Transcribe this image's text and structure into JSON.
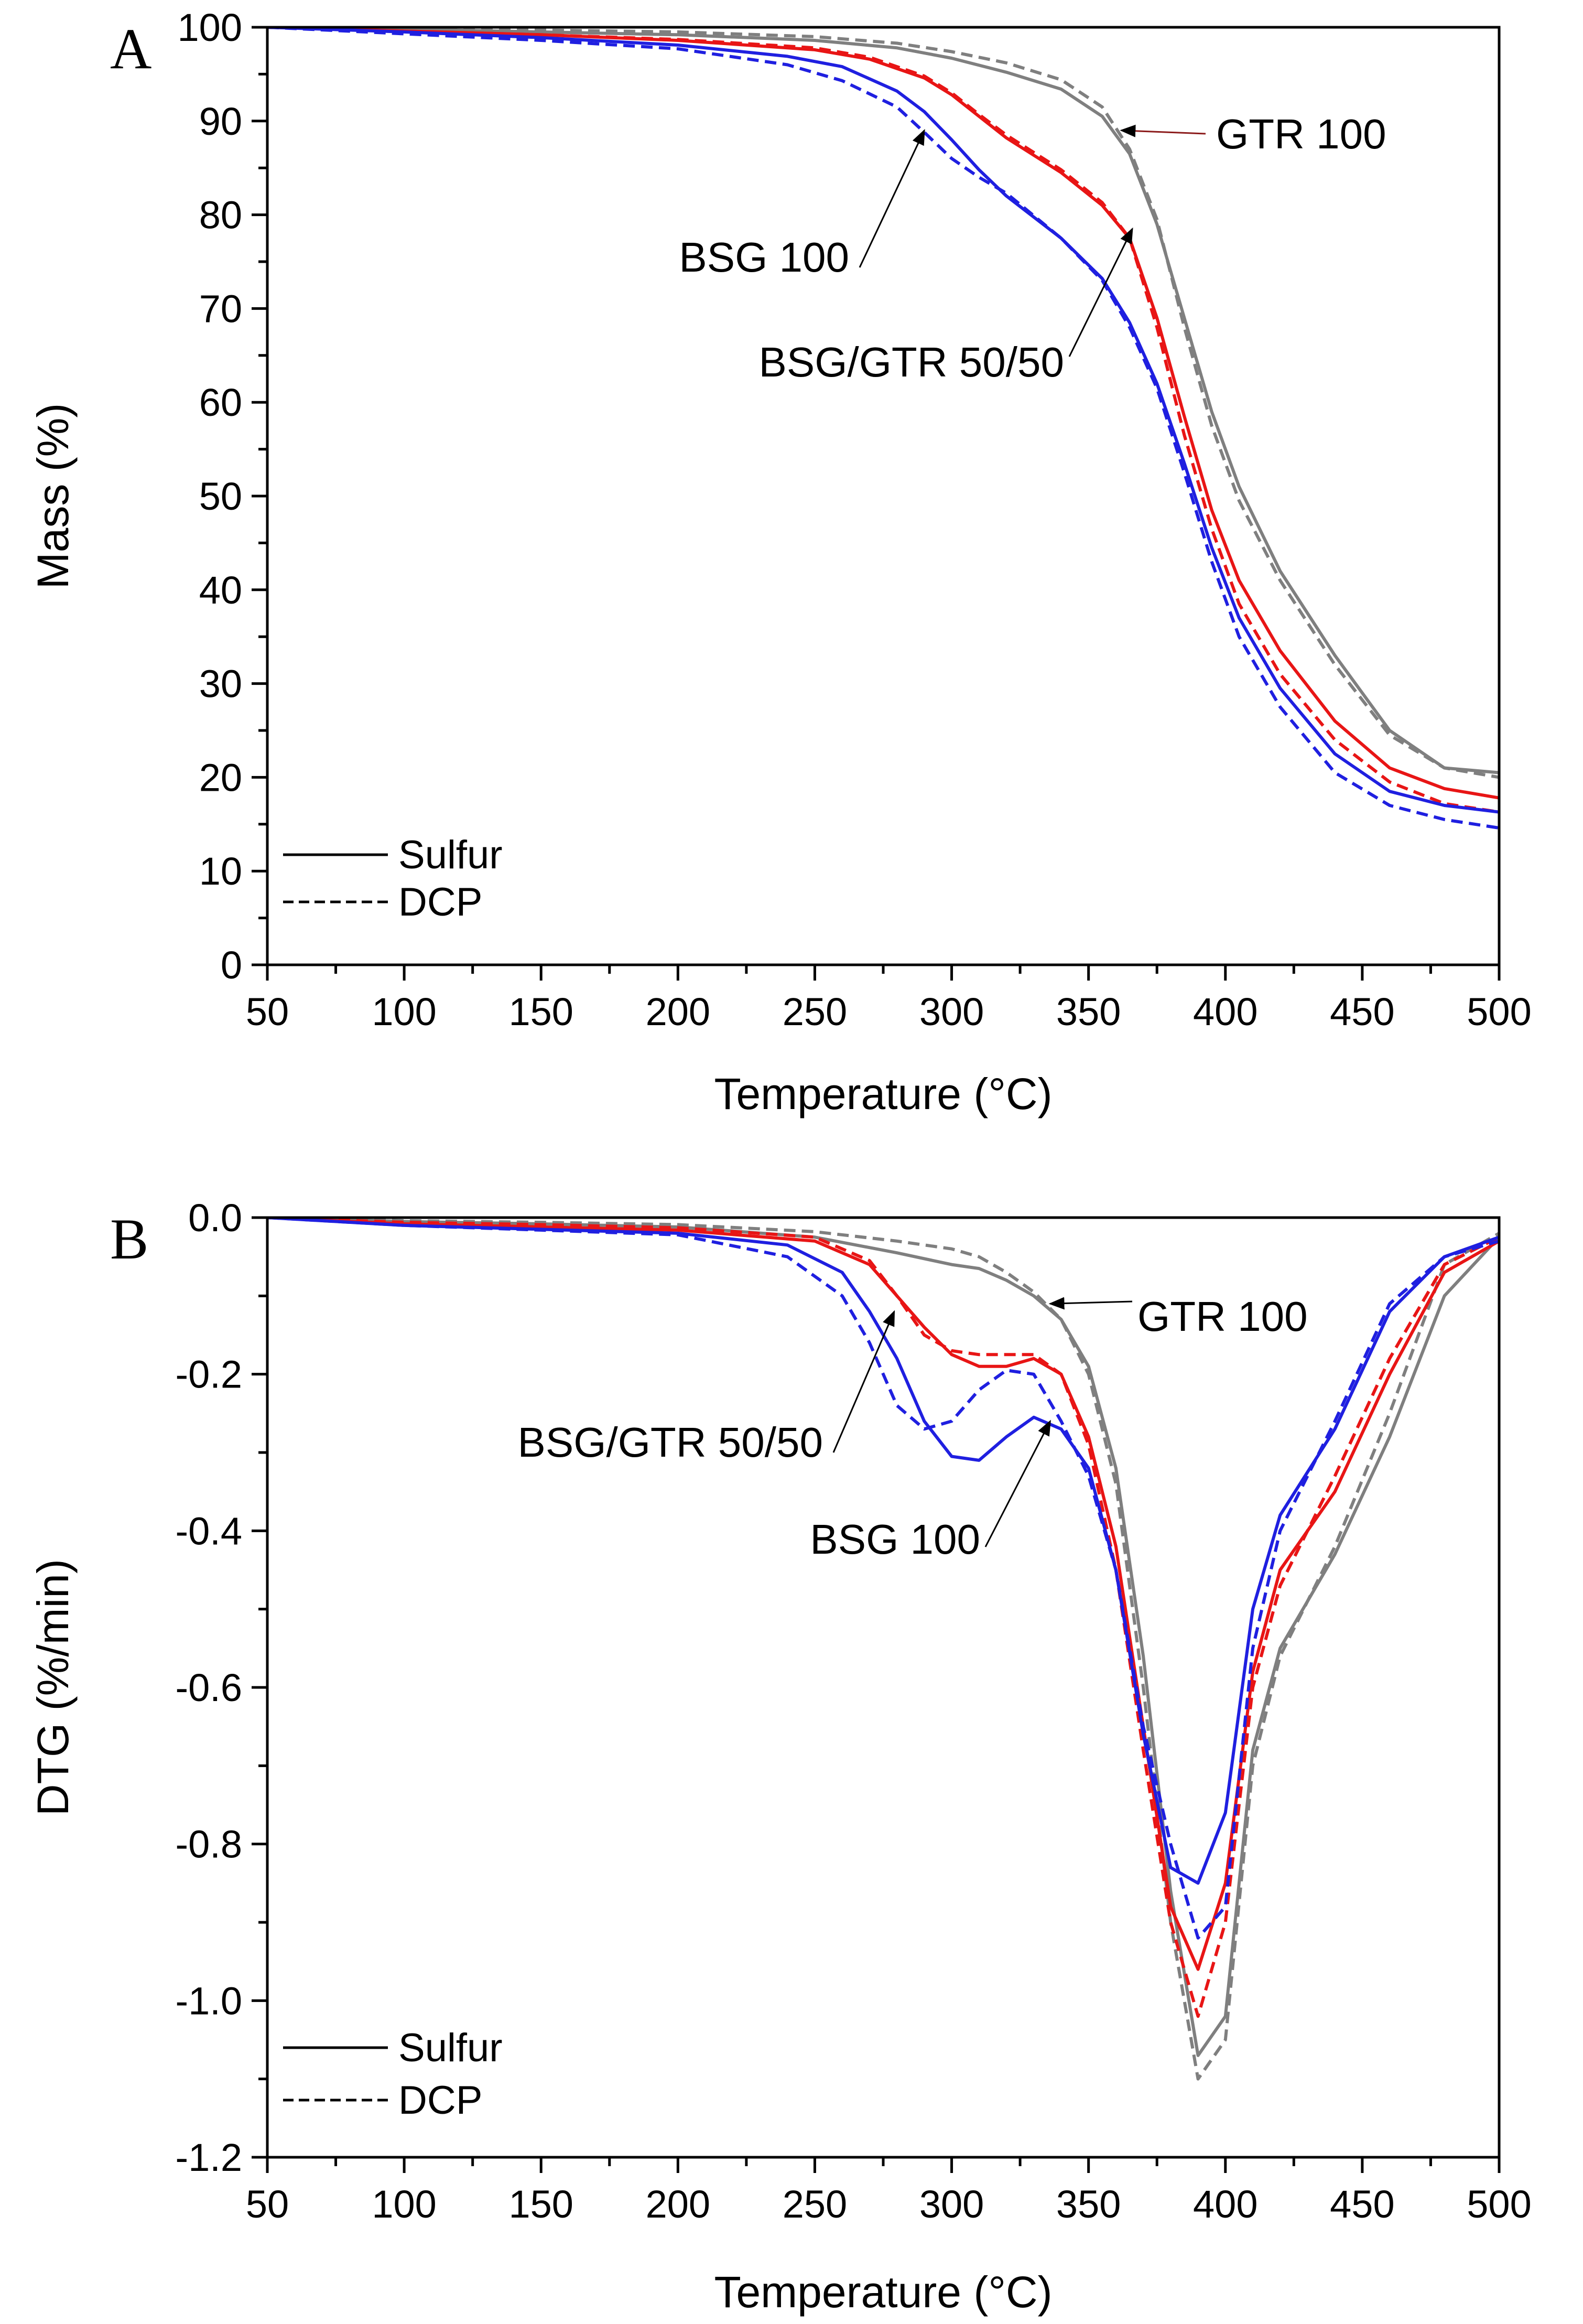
{
  "colors": {
    "bsg": "#1f1fe0",
    "mix": "#e81515",
    "gtr": "#7f7f7f",
    "gtr_arrow_a": "#8b1a1a",
    "axis": "#000000"
  },
  "chart_data": [
    {
      "panel": "A",
      "type": "line",
      "xlabel": "Temperature (°C)",
      "ylabel": "Mass (%)",
      "xlim": [
        50,
        500
      ],
      "ylim": [
        0,
        100
      ],
      "xticks": [
        50,
        100,
        150,
        200,
        250,
        300,
        350,
        400,
        450,
        500
      ],
      "yticks": [
        0,
        10,
        20,
        30,
        40,
        50,
        60,
        70,
        80,
        90,
        100
      ],
      "legend": {
        "position": "bottom-left",
        "entries": [
          {
            "label": "Sulfur",
            "style": "solid"
          },
          {
            "label": "DCP",
            "style": "dashed"
          }
        ]
      },
      "annotations": [
        {
          "text": "GTR 100",
          "points_to": [
            362,
            89
          ]
        },
        {
          "text": "BSG 100",
          "points_to": [
            290,
            89
          ]
        },
        {
          "text": "BSG/GTR 50/50",
          "points_to": [
            366,
            78.5
          ]
        }
      ],
      "series": [
        {
          "name": "GTR 100",
          "curing": "Sulfur",
          "style": "solid",
          "color_key": "gtr",
          "x": [
            50,
            100,
            150,
            200,
            250,
            280,
            300,
            320,
            340,
            355,
            365,
            375,
            385,
            395,
            405,
            420,
            440,
            460,
            480,
            500
          ],
          "y": [
            100,
            99.8,
            99.5,
            99.2,
            98.6,
            97.8,
            96.7,
            95.2,
            93.4,
            90.5,
            86.5,
            79,
            69,
            59,
            51,
            42,
            33,
            25,
            21,
            20.5
          ]
        },
        {
          "name": "GTR 100",
          "curing": "DCP",
          "style": "dashed",
          "color_key": "gtr",
          "x": [
            50,
            100,
            150,
            200,
            250,
            280,
            300,
            320,
            340,
            355,
            365,
            375,
            385,
            395,
            405,
            420,
            440,
            460,
            480,
            500
          ],
          "y": [
            100,
            99.9,
            99.7,
            99.5,
            99,
            98.3,
            97.4,
            96.2,
            94.4,
            91.5,
            87,
            79.5,
            68,
            57.5,
            49.5,
            41,
            32,
            24.5,
            21,
            20
          ]
        },
        {
          "name": "BSG/GTR 50/50",
          "curing": "Sulfur",
          "style": "solid",
          "color_key": "mix",
          "x": [
            50,
            100,
            150,
            200,
            250,
            270,
            290,
            300,
            310,
            320,
            340,
            355,
            365,
            375,
            385,
            395,
            405,
            420,
            440,
            460,
            480,
            500
          ],
          "y": [
            100,
            99.6,
            99.2,
            98.6,
            97.6,
            96.6,
            94.6,
            92.8,
            90.5,
            88.2,
            84.5,
            81,
            77.5,
            69,
            58.5,
            48.5,
            41,
            33.5,
            26,
            21,
            18.8,
            17.8
          ]
        },
        {
          "name": "BSG/GTR 50/50",
          "curing": "DCP",
          "style": "dashed",
          "color_key": "mix",
          "x": [
            50,
            100,
            150,
            200,
            250,
            270,
            290,
            300,
            310,
            320,
            340,
            355,
            365,
            375,
            385,
            395,
            405,
            420,
            440,
            460,
            480,
            500
          ],
          "y": [
            100,
            99.6,
            99.2,
            98.7,
            97.8,
            96.8,
            94.8,
            93,
            90.7,
            88.5,
            84.8,
            81.3,
            77.5,
            68,
            56.5,
            46.5,
            38.5,
            31,
            24,
            19.5,
            17.2,
            16.3
          ]
        },
        {
          "name": "BSG 100",
          "curing": "Sulfur",
          "style": "solid",
          "color_key": "bsg",
          "x": [
            50,
            100,
            150,
            200,
            240,
            260,
            280,
            290,
            300,
            310,
            320,
            340,
            355,
            365,
            375,
            385,
            395,
            405,
            420,
            440,
            460,
            480,
            500
          ],
          "y": [
            100,
            99.5,
            98.9,
            98.1,
            96.9,
            95.8,
            93.2,
            91,
            88,
            84.8,
            82,
            77.5,
            73.2,
            68.5,
            62,
            53.5,
            44.5,
            37,
            29.5,
            22.5,
            18.5,
            17,
            16.3
          ]
        },
        {
          "name": "BSG 100",
          "curing": "DCP",
          "style": "dashed",
          "color_key": "bsg",
          "x": [
            50,
            100,
            150,
            200,
            240,
            260,
            280,
            290,
            300,
            310,
            320,
            340,
            355,
            365,
            375,
            385,
            395,
            405,
            420,
            440,
            460,
            480,
            500
          ],
          "y": [
            100,
            99.3,
            98.6,
            97.7,
            96,
            94.3,
            91.5,
            88.8,
            86,
            84,
            82.3,
            77.5,
            73,
            68,
            61.5,
            52.5,
            43,
            35,
            27.5,
            20.5,
            17,
            15.5,
            14.6
          ]
        }
      ]
    },
    {
      "panel": "B",
      "type": "line",
      "xlabel": "Temperature (°C)",
      "ylabel": "DTG (%/min)",
      "xlim": [
        50,
        500
      ],
      "ylim": [
        -1.2,
        0.0
      ],
      "xticks": [
        50,
        100,
        150,
        200,
        250,
        300,
        350,
        400,
        450,
        500
      ],
      "yticks": [
        "0.0",
        "-0.2",
        "-0.4",
        "-0.6",
        "-0.8",
        "-1.0",
        "-1.2"
      ],
      "legend": {
        "position": "bottom-left",
        "entries": [
          {
            "label": "Sulfur",
            "style": "solid"
          },
          {
            "label": "DCP",
            "style": "dashed"
          }
        ]
      },
      "annotations": [
        {
          "text": "GTR 100",
          "points_to": [
            336,
            -0.11
          ]
        },
        {
          "text": "BSG/GTR 50/50",
          "points_to": [
            279,
            -0.12
          ]
        },
        {
          "text": "BSG 100",
          "points_to": [
            336,
            -0.26
          ]
        }
      ],
      "series": [
        {
          "name": "GTR 100",
          "curing": "Sulfur",
          "style": "solid",
          "color_key": "gtr",
          "x": [
            50,
            100,
            150,
            200,
            250,
            280,
            300,
            310,
            320,
            330,
            340,
            350,
            360,
            370,
            380,
            390,
            400,
            410,
            420,
            440,
            460,
            480,
            500
          ],
          "y": [
            0,
            -0.005,
            -0.008,
            -0.012,
            -0.025,
            -0.045,
            -0.06,
            -0.065,
            -0.08,
            -0.1,
            -0.13,
            -0.19,
            -0.32,
            -0.56,
            -0.86,
            -1.07,
            -1.02,
            -0.68,
            -0.55,
            -0.43,
            -0.28,
            -0.1,
            -0.025
          ]
        },
        {
          "name": "GTR 100",
          "curing": "DCP",
          "style": "dashed",
          "color_key": "gtr",
          "x": [
            50,
            100,
            150,
            200,
            250,
            280,
            300,
            310,
            320,
            330,
            340,
            350,
            360,
            370,
            380,
            390,
            400,
            410,
            420,
            440,
            460,
            480,
            500
          ],
          "y": [
            0,
            -0.004,
            -0.006,
            -0.009,
            -0.018,
            -0.03,
            -0.04,
            -0.05,
            -0.07,
            -0.095,
            -0.13,
            -0.2,
            -0.34,
            -0.6,
            -0.9,
            -1.1,
            -1.05,
            -0.7,
            -0.56,
            -0.42,
            -0.25,
            -0.06,
            -0.02
          ]
        },
        {
          "name": "BSG/GTR 50/50",
          "curing": "Sulfur",
          "style": "solid",
          "color_key": "mix",
          "x": [
            50,
            100,
            150,
            200,
            250,
            270,
            280,
            290,
            300,
            310,
            320,
            330,
            340,
            350,
            360,
            370,
            380,
            390,
            400,
            410,
            420,
            440,
            460,
            480,
            500
          ],
          "y": [
            0,
            -0.008,
            -0.012,
            -0.016,
            -0.03,
            -0.06,
            -0.1,
            -0.14,
            -0.175,
            -0.19,
            -0.19,
            -0.18,
            -0.2,
            -0.28,
            -0.42,
            -0.65,
            -0.88,
            -0.96,
            -0.85,
            -0.58,
            -0.45,
            -0.35,
            -0.2,
            -0.07,
            -0.03
          ]
        },
        {
          "name": "BSG/GTR 50/50",
          "curing": "DCP",
          "style": "dashed",
          "color_key": "mix",
          "x": [
            50,
            100,
            150,
            200,
            250,
            270,
            280,
            290,
            300,
            310,
            320,
            330,
            340,
            350,
            360,
            370,
            380,
            390,
            400,
            410,
            420,
            440,
            460,
            480,
            500
          ],
          "y": [
            0,
            -0.006,
            -0.009,
            -0.013,
            -0.025,
            -0.055,
            -0.1,
            -0.15,
            -0.17,
            -0.175,
            -0.175,
            -0.175,
            -0.2,
            -0.29,
            -0.45,
            -0.68,
            -0.9,
            -1.02,
            -0.9,
            -0.6,
            -0.47,
            -0.33,
            -0.18,
            -0.06,
            -0.025
          ]
        },
        {
          "name": "BSG 100",
          "curing": "Sulfur",
          "style": "solid",
          "color_key": "bsg",
          "x": [
            50,
            100,
            150,
            200,
            240,
            260,
            270,
            280,
            290,
            300,
            310,
            320,
            330,
            340,
            350,
            360,
            370,
            380,
            390,
            400,
            410,
            420,
            440,
            460,
            480,
            500
          ],
          "y": [
            0,
            -0.01,
            -0.015,
            -0.02,
            -0.035,
            -0.07,
            -0.12,
            -0.18,
            -0.26,
            -0.305,
            -0.31,
            -0.28,
            -0.255,
            -0.27,
            -0.32,
            -0.45,
            -0.66,
            -0.83,
            -0.85,
            -0.76,
            -0.5,
            -0.38,
            -0.27,
            -0.12,
            -0.05,
            -0.025
          ]
        },
        {
          "name": "BSG 100",
          "curing": "DCP",
          "style": "dashed",
          "color_key": "bsg",
          "x": [
            50,
            100,
            150,
            200,
            240,
            260,
            270,
            280,
            290,
            300,
            310,
            320,
            330,
            340,
            350,
            360,
            370,
            380,
            390,
            400,
            410,
            420,
            440,
            460,
            480,
            500
          ],
          "y": [
            0,
            -0.01,
            -0.016,
            -0.022,
            -0.05,
            -0.1,
            -0.16,
            -0.24,
            -0.27,
            -0.26,
            -0.22,
            -0.195,
            -0.2,
            -0.26,
            -0.33,
            -0.45,
            -0.65,
            -0.8,
            -0.92,
            -0.88,
            -0.55,
            -0.4,
            -0.26,
            -0.11,
            -0.05,
            -0.03
          ]
        }
      ]
    }
  ]
}
